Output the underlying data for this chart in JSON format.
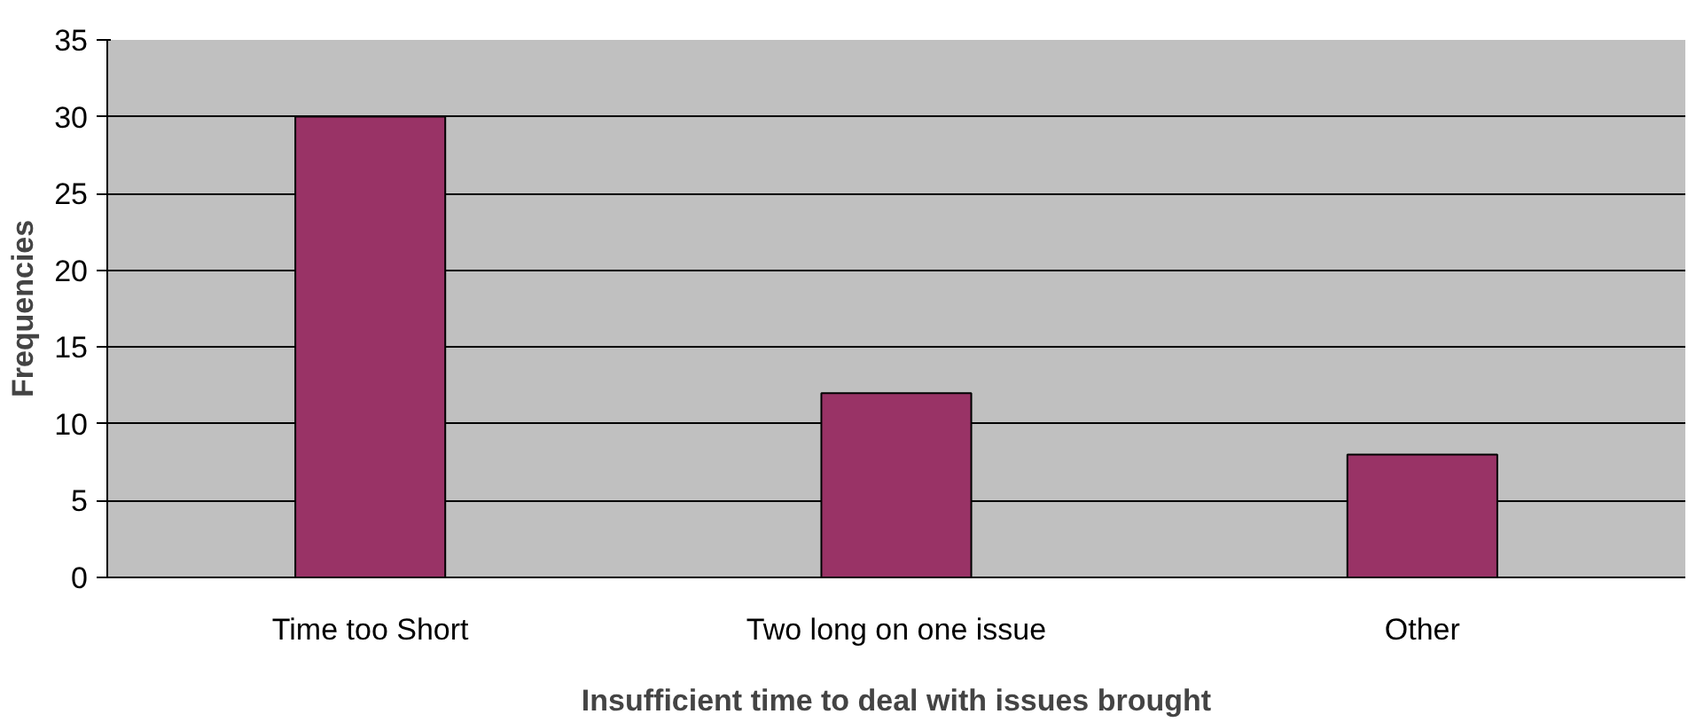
{
  "chart_data": {
    "type": "bar",
    "xlabel": "Insufficient time to deal with issues brought",
    "ylabel": "Frequencies",
    "categories": [
      "Time too Short",
      "Two long on one issue",
      "Other"
    ],
    "values": [
      30,
      12,
      8
    ],
    "color": "#993366",
    "ylim": [
      0,
      35
    ],
    "yticks": [
      0,
      5,
      10,
      15,
      20,
      25,
      30,
      35
    ],
    "grid": "y"
  }
}
